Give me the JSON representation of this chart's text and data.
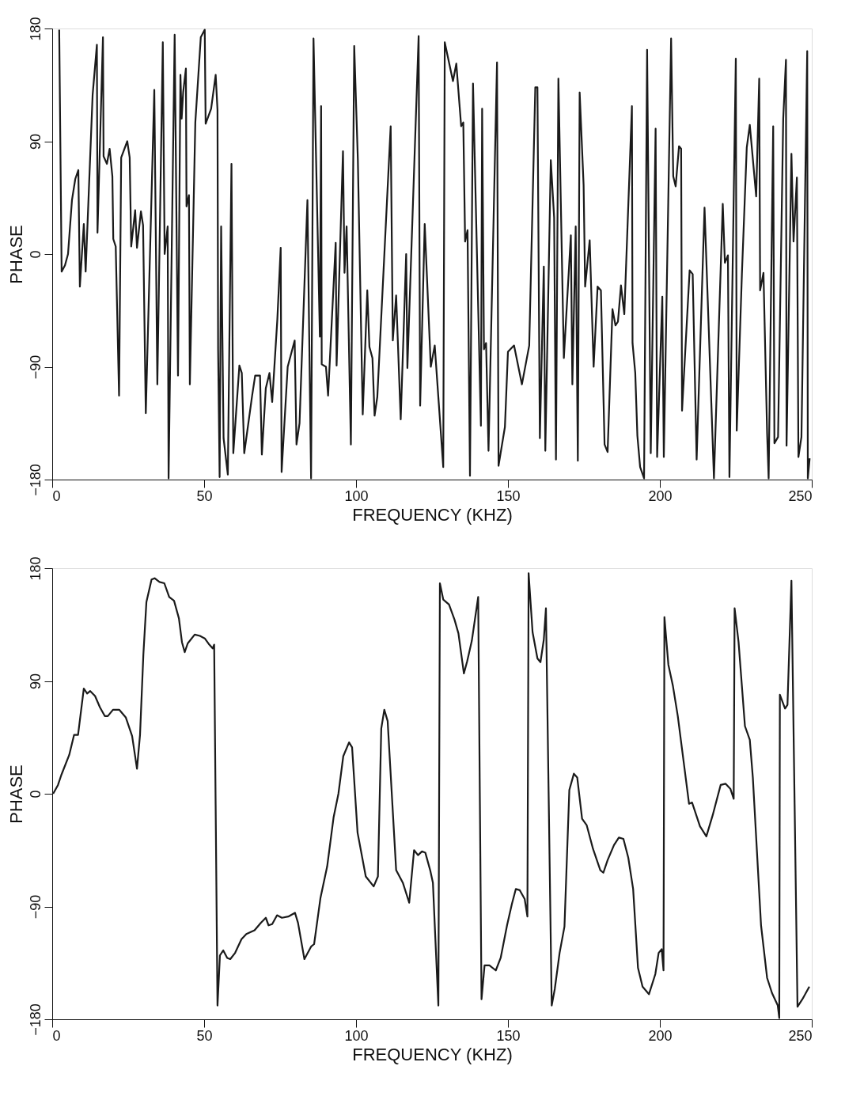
{
  "chart_data": [
    {
      "type": "line",
      "xlabel": "FREQUENCY (KHZ)",
      "ylabel": "PHASE",
      "xlim": [
        0,
        250
      ],
      "ylim": [
        -180,
        180
      ],
      "xticks": [
        0,
        50,
        100,
        150,
        200,
        250
      ],
      "yticks": [
        -180,
        -90,
        0,
        90,
        180
      ],
      "grid": false,
      "x": [
        2.3,
        3.1,
        4.2,
        5.2,
        6.5,
        7.6,
        8.6,
        9.1,
        10.4,
        11.0,
        13.3,
        14.7,
        14.9,
        16.7,
        16.9,
        18.0,
        18.9,
        19.8,
        20.1,
        20.9,
        22.0,
        22.7,
        24.7,
        25.5,
        26.0,
        27.3,
        27.9,
        29.2,
        29.9,
        30.8,
        33.6,
        34.6,
        36.4,
        37.0,
        38.0,
        38.3,
        40.3,
        41.4,
        42.2,
        42.6,
        43.1,
        44.0,
        44.2,
        45.0,
        45.3,
        47.1,
        48.9,
        50.2,
        50.5,
        52.3,
        53.8,
        54.4,
        54.6,
        55.1,
        55.6,
        56.4,
        57.8,
        59.0,
        59.6,
        61.6,
        62.4,
        63.2,
        65.8,
        66.8,
        68.4,
        69.0,
        70.3,
        71.5,
        72.4,
        74.1,
        75.2,
        75.5,
        77.5,
        79.8,
        80.4,
        81.4,
        84.0,
        85.2,
        86.0,
        88.1,
        88.5,
        88.7,
        90.1,
        90.8,
        93.3,
        93.6,
        95.7,
        96.2,
        96.9,
        98.3,
        99.4,
        100.6,
        102.2,
        103.7,
        104.4,
        105.4,
        106.1,
        107.0,
        111.4,
        112.1,
        113.2,
        114.7,
        116.5,
        116.9,
        120.6,
        121.1,
        122.6,
        124.6,
        125.9,
        128.7,
        129.2,
        131.9,
        133.0,
        134.6,
        135.3,
        135.9,
        136.7,
        137.5,
        138.5,
        141.1,
        141.5,
        142.1,
        142.8,
        143.6,
        146.4,
        146.9,
        149.0,
        150.0,
        152.0,
        154.6,
        157.0,
        159.0,
        159.7,
        160.5,
        161.8,
        162.3,
        164.1,
        165.2,
        165.8,
        166.6,
        168.4,
        170.7,
        171.2,
        172.3,
        173.0,
        173.6,
        174.9,
        175.4,
        176.9,
        178.2,
        179.5,
        180.6,
        181.8,
        182.8,
        184.4,
        185.4,
        186.2,
        187.2,
        188.3,
        190.8,
        191.0,
        191.9,
        192.6,
        193.5,
        194.8,
        195.8,
        197.0,
        198.6,
        199.1,
        200.8,
        201.3,
        203.7,
        204.4,
        205.2,
        206.3,
        207.0,
        207.3,
        209.8,
        210.8,
        212.1,
        214.7,
        217.8,
        220.7,
        221.4,
        222.4,
        222.9,
        225.0,
        225.3,
        227.0,
        228.6,
        229.6,
        231.7,
        232.7,
        233.0,
        234.1,
        235.3,
        235.8,
        237.3,
        237.7,
        238.9,
        240.6,
        241.5,
        241.7,
        243.3,
        244.0,
        245.1,
        245.6,
        246.6,
        248.5,
        248.7,
        249.3
      ],
      "series": [
        {
          "color": "#1a1a1a",
          "values": [
            179,
            -14,
            -9,
            0,
            43,
            60,
            67,
            -26,
            24,
            -14,
            127,
            167,
            17,
            173,
            78,
            72,
            84,
            62,
            12,
            6,
            -113,
            77,
            90,
            77,
            6,
            35,
            5,
            34,
            23,
            -127,
            131,
            -104,
            169,
            0,
            22,
            -179,
            175,
            -97,
            143,
            108,
            129,
            148,
            38,
            47,
            -104,
            105,
            173,
            179,
            104,
            116,
            143,
            115,
            -76,
            -178,
            22,
            -147,
            -176,
            72,
            -159,
            -89,
            -95,
            -159,
            -113,
            -97,
            -97,
            -160,
            -107,
            -95,
            -118,
            -52,
            5,
            -174,
            -90,
            -69,
            -152,
            -135,
            43,
            -179,
            172,
            -66,
            118,
            -88,
            -90,
            -113,
            9,
            -89,
            82,
            -15,
            22,
            -152,
            166,
            75,
            -128,
            -29,
            -74,
            -83,
            -129,
            -114,
            102,
            -69,
            -33,
            -132,
            0,
            -91,
            174,
            -121,
            24,
            -90,
            -73,
            -170,
            169,
            138,
            152,
            102,
            105,
            10,
            19,
            -177,
            136,
            -137,
            116,
            -76,
            -71,
            -157,
            153,
            -169,
            -138,
            -78,
            -73,
            -104,
            -73,
            133,
            133,
            -147,
            -10,
            -157,
            75,
            29,
            -164,
            140,
            -83,
            15,
            -104,
            22,
            -165,
            129,
            55,
            -26,
            11,
            -90,
            -26,
            -29,
            -152,
            -158,
            -44,
            -57,
            -54,
            -25,
            -48,
            118,
            -71,
            -95,
            -145,
            -170,
            -179,
            163,
            -159,
            100,
            -162,
            -34,
            -162,
            172,
            62,
            54,
            86,
            84,
            -125,
            -13,
            -16,
            -164,
            37,
            -179,
            40,
            -7,
            -1,
            -178,
            156,
            -141,
            -16,
            85,
            103,
            46,
            140,
            -29,
            -15,
            -143,
            -179,
            102,
            -151,
            -146,
            108,
            155,
            -153,
            80,
            10,
            61,
            -162,
            -146,
            162,
            -179,
            -163
          ]
        }
      ]
    },
    {
      "type": "line",
      "xlabel": "FREQUENCY (KHZ)",
      "ylabel": "PHASE",
      "xlim": [
        0,
        250
      ],
      "ylim": [
        -180,
        180
      ],
      "xticks": [
        0,
        50,
        100,
        150,
        200,
        250
      ],
      "yticks": [
        -180,
        -90,
        0,
        90,
        180
      ],
      "grid": false,
      "x": [
        0.3,
        1.9,
        3.0,
        5.6,
        7.2,
        8.5,
        10.4,
        11.5,
        12.5,
        14.1,
        15.7,
        17.3,
        18.3,
        20.0,
        22.1,
        24.2,
        26.3,
        27.9,
        28.9,
        30.0,
        31.0,
        32.7,
        33.7,
        35.3,
        36.9,
        38.5,
        40.1,
        41.7,
        42.7,
        43.6,
        44.6,
        46.9,
        48.6,
        50.2,
        51.7,
        52.8,
        53.3,
        54.4,
        55.2,
        56.3,
        57.6,
        58.6,
        60.2,
        62.3,
        63.9,
        66.6,
        68.7,
        70.3,
        71.2,
        72.4,
        74.0,
        75.6,
        77.7,
        79.9,
        80.9,
        83.0,
        85.2,
        86.2,
        88.3,
        90.5,
        92.6,
        94.2,
        95.8,
        97.7,
        98.7,
        100.5,
        103.2,
        105.8,
        107.2,
        108.3,
        109.3,
        110.4,
        113.2,
        115.4,
        117.5,
        119.1,
        120.4,
        121.7,
        122.8,
        124.4,
        125.3,
        126.0,
        127.1,
        127.6,
        128.7,
        130.6,
        132.4,
        133.7,
        135.5,
        136.6,
        138.1,
        140.2,
        141.3,
        142.3,
        143.9,
        146.0,
        147.6,
        149.7,
        151.3,
        152.6,
        153.9,
        155.5,
        156.4,
        156.8,
        158.1,
        159.7,
        160.7,
        161.8,
        162.5,
        164.4,
        165.4,
        167.0,
        168.6,
        170.2,
        171.7,
        172.8,
        174.4,
        175.9,
        178.0,
        180.4,
        181.4,
        182.8,
        184.9,
        186.5,
        188.0,
        189.6,
        191.2,
        192.8,
        194.3,
        196.4,
        198.5,
        199.6,
        200.6,
        201.2,
        201.5,
        202.8,
        204.3,
        205.9,
        209.6,
        210.6,
        213.2,
        215.3,
        217.4,
        220.0,
        221.6,
        223.2,
        224.3,
        224.6,
        225.9,
        228.0,
        229.6,
        230.6,
        233.3,
        235.3,
        236.9,
        238.8,
        239.3,
        239.5,
        241.2,
        242.0,
        243.3,
        245.3,
        246.9,
        249.2
      ],
      "series": [
        {
          "color": "#1a1a1a",
          "values": [
            0,
            7,
            15,
            31,
            47,
            47,
            84,
            80,
            82,
            78,
            69,
            62,
            62,
            67,
            67,
            61,
            46,
            20,
            47,
            111,
            153,
            171,
            172,
            169,
            168,
            157,
            154,
            140,
            121,
            113,
            120,
            127,
            126,
            124,
            119,
            116,
            119,
            -169,
            -129,
            -125,
            -131,
            -132,
            -127,
            -116,
            -112,
            -109,
            -103,
            -99,
            -105,
            -104,
            -97,
            -99,
            -98,
            -95,
            -103,
            -132,
            -122,
            -120,
            -83,
            -58,
            -19,
            0,
            30,
            41,
            37,
            -31,
            -66,
            -74,
            -66,
            52,
            67,
            58,
            -61,
            -71,
            -87,
            -45,
            -49,
            -46,
            -47,
            -61,
            -71,
            -110,
            -169,
            168,
            155,
            151,
            139,
            128,
            96,
            106,
            122,
            157,
            -164,
            -137,
            -137,
            -141,
            -131,
            -105,
            -88,
            -76,
            -77,
            -84,
            -98,
            176,
            129,
            108,
            105,
            123,
            148,
            -169,
            -156,
            -127,
            -106,
            3,
            16,
            13,
            -20,
            -25,
            -44,
            -61,
            -63,
            -53,
            -41,
            -35,
            -36,
            -51,
            -76,
            -139,
            -154,
            -160,
            -144,
            -127,
            -124,
            -141,
            141,
            103,
            86,
            62,
            -8,
            -7,
            -26,
            -34,
            -17,
            7,
            8,
            4,
            -4,
            148,
            121,
            54,
            43,
            13,
            -105,
            -147,
            -159,
            -169,
            -179,
            79,
            68,
            71,
            170,
            -170,
            -164,
            -154
          ]
        }
      ]
    }
  ]
}
